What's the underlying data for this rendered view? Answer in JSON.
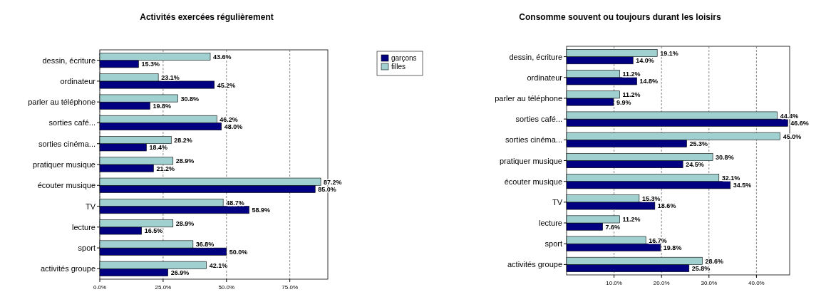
{
  "chart_data": [
    {
      "type": "bar",
      "orientation": "horizontal",
      "title": "Activités exercées régulièrement",
      "categories": [
        "dessin, écriture",
        "ordinateur",
        "parler au téléphone",
        "sorties café...",
        "sorties cinéma...",
        "pratiquer musique",
        "écouter musique",
        "TV",
        "lecture",
        "sport",
        "activités groupe"
      ],
      "series": [
        {
          "name": "garçons",
          "color": "#000080",
          "values": [
            15.3,
            45.2,
            19.8,
            48.0,
            18.4,
            21.2,
            85.0,
            58.9,
            16.5,
            50.0,
            26.9
          ],
          "value_labels": [
            "15.3%",
            "45.2%",
            "19.8%",
            "48.0%",
            "18.4%",
            "21.2%",
            "85.0%",
            "58.9%",
            "16.5%",
            "50.0%",
            "26.9%"
          ]
        },
        {
          "name": "filles",
          "color": "#a0d0d0",
          "values": [
            43.6,
            23.1,
            30.8,
            46.2,
            28.2,
            28.9,
            87.2,
            48.7,
            28.9,
            36.8,
            42.1
          ],
          "value_labels": [
            "43.6%",
            "23.1%",
            "30.8%",
            "46.2%",
            "28.2%",
            "28.9%",
            "87.2%",
            "48.7%",
            "28.9%",
            "36.8%",
            "42.1%"
          ]
        }
      ],
      "xlim": [
        0,
        90
      ],
      "xticks": [
        {
          "value": 0,
          "label": "0.0%"
        },
        {
          "value": 25,
          "label": "25.0%"
        },
        {
          "value": 50,
          "label": "50.0%"
        },
        {
          "value": 75,
          "label": "75.0%"
        }
      ],
      "grid": "x",
      "legend": "top right"
    },
    {
      "type": "bar",
      "orientation": "horizontal",
      "title": "Consomme souvent ou toujours durant les loisirs",
      "categories": [
        "dessin, écriture",
        "ordinateur",
        "parler au téléphone",
        "sorties café...",
        "sorties cinéma...",
        "pratiquer musique",
        "écouter musique",
        "TV",
        "lecture",
        "sport",
        "activités groupe"
      ],
      "series": [
        {
          "color": "#000080",
          "values": [
            14.0,
            14.8,
            9.9,
            46.6,
            25.3,
            24.5,
            34.5,
            18.6,
            7.6,
            19.8,
            25.8
          ],
          "value_labels": [
            "14.0%",
            "14.8%",
            "9.9%",
            "46.6%",
            "25.3%",
            "24.5%",
            "34.5%",
            "18.6%",
            "7.6%",
            "19.8%",
            "25.8%"
          ]
        },
        {
          "color": "#a0d0d0",
          "values": [
            19.1,
            11.2,
            11.2,
            44.4,
            45.0,
            30.8,
            32.1,
            15.3,
            11.2,
            16.7,
            28.6
          ],
          "value_labels": [
            "19.1%",
            "11.2%",
            "11.2%",
            "44.4%",
            "45.0%",
            "30.8%",
            "32.1%",
            "15.3%",
            "11.2%",
            "16.7%",
            "28.6%"
          ]
        }
      ],
      "xlim": [
        0,
        47
      ],
      "xticks": [
        {
          "value": 10,
          "label": "10.0%"
        },
        {
          "value": 20,
          "label": "20.0%"
        },
        {
          "value": 30,
          "label": "30.0%"
        },
        {
          "value": 40,
          "label": "40.0%"
        }
      ],
      "grid": "x",
      "legend": false
    }
  ]
}
